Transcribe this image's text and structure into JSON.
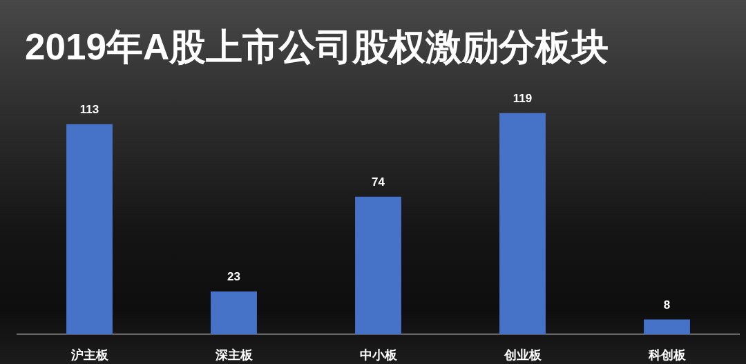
{
  "chart_data": {
    "type": "bar",
    "title": "2019年A股上市公司股权激励分板块",
    "categories": [
      "沪主板",
      "深主板",
      "中小板",
      "创业板",
      "科创板"
    ],
    "values": [
      113,
      23,
      74,
      119,
      8
    ],
    "color": "#4672c8",
    "data_labels": true
  }
}
